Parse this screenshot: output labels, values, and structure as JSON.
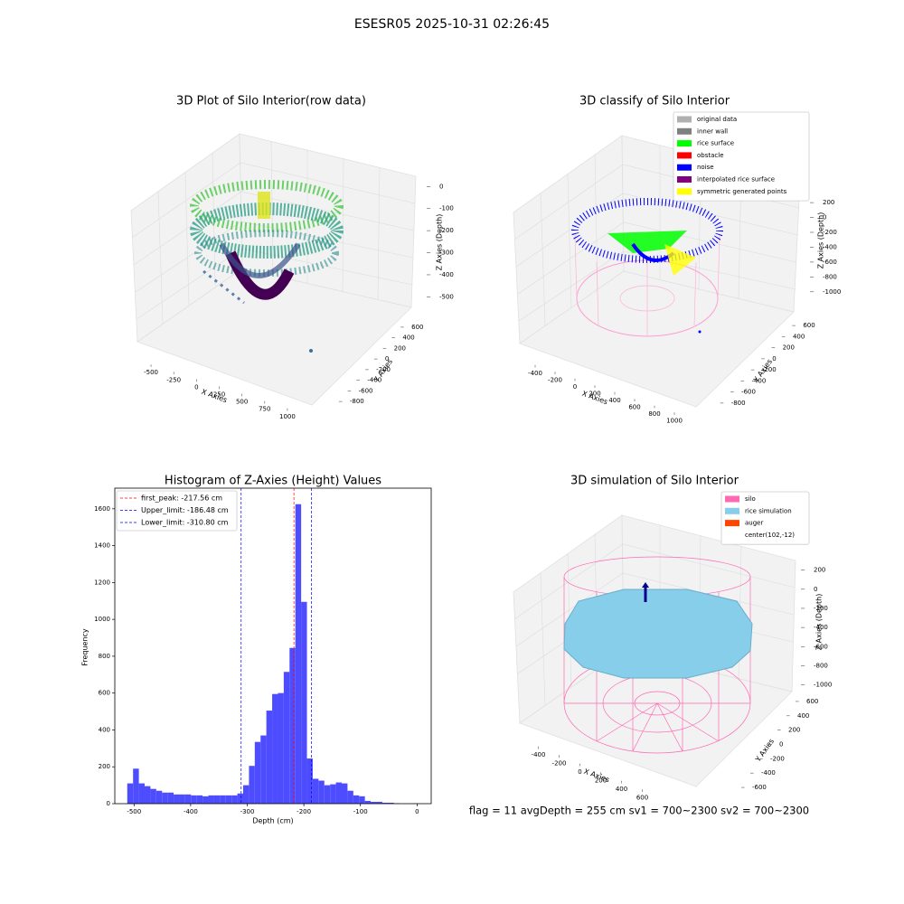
{
  "suptitle": "ESESR05 2025-10-31 02:26:45",
  "footer": "flag = 11  avgDepth = 255 cm  sv1 = 700~2300  sv2 = 700~2300",
  "chart_data": [
    {
      "type": "scatter3d",
      "title": "3D Plot of Silo Interior(row data)",
      "xlabel": "X Axies",
      "ylabel": "Y Axies",
      "zlabel": "Z Axies (Depth)",
      "xlim": [
        -600,
        1100
      ],
      "xticks": [
        -500,
        -250,
        0,
        250,
        500,
        750,
        1000
      ],
      "ylim": [
        -900,
        700
      ],
      "yticks": [
        600,
        400,
        200,
        0,
        -200,
        -400,
        -600,
        -800
      ],
      "zlim": [
        -560,
        30
      ],
      "zticks": [
        0,
        -100,
        -200,
        -300,
        -400,
        -500
      ]
    },
    {
      "type": "scatter3d",
      "title": "3D classify of Silo Interior",
      "xlabel": "X Axies",
      "ylabel": "Y Axies",
      "zlabel": "Z Axies (Depth)",
      "xlim": [
        -500,
        1100
      ],
      "xticks": [
        -400,
        -200,
        0,
        200,
        400,
        600,
        800,
        1000
      ],
      "ylim": [
        -900,
        700
      ],
      "yticks": [
        600,
        400,
        200,
        0,
        -200,
        -400,
        -600,
        -800
      ],
      "zlim": [
        -1100,
        250
      ],
      "zticks": [
        200,
        0,
        -200,
        -400,
        -600,
        -800,
        -1000
      ],
      "legend": [
        {
          "name": "original data",
          "color": "#b0b0b0"
        },
        {
          "name": "inner wall",
          "color": "#808080"
        },
        {
          "name": "rice surface",
          "color": "#00ff00"
        },
        {
          "name": "obstacle",
          "color": "#ff0000"
        },
        {
          "name": "noise",
          "color": "#0000ff"
        },
        {
          "name": "interpolated rice surface",
          "color": "#800080"
        },
        {
          "name": "symmetric generated points",
          "color": "#ffff00"
        }
      ]
    },
    {
      "type": "histogram",
      "title": "Histogram of Z-Axies (Height) Values",
      "xlabel": "Depth (cm)",
      "ylabel": "Frequency",
      "color": "#4d4dff",
      "bins": [
        -512,
        -501.76,
        -491.52,
        -481.28,
        -471.04,
        -460.8,
        -450.56,
        -440.32,
        -430.08,
        -419.84,
        -409.6,
        -399.36,
        -389.12,
        -378.88,
        -368.64,
        -358.4,
        -348.16,
        -337.92,
        -327.68,
        -317.44,
        -307.2,
        -296.96,
        -286.72,
        -276.48,
        -266.24,
        -256,
        -245.76,
        -235.52,
        -225.28,
        -215.04,
        -204.8,
        -194.56,
        -184.32,
        -174.08,
        -163.84,
        -153.6,
        -143.36,
        -133.12,
        -122.88,
        -112.64,
        -102.4,
        -92.16,
        -81.92,
        -71.68,
        -61.44,
        -51.2,
        -40.96,
        -30.72,
        -20.48,
        -10.24,
        0
      ],
      "values": [
        110,
        190,
        110,
        95,
        80,
        70,
        60,
        60,
        50,
        50,
        50,
        45,
        45,
        40,
        45,
        45,
        45,
        45,
        45,
        55,
        100,
        205,
        335,
        370,
        505,
        595,
        600,
        715,
        845,
        1625,
        1095,
        245,
        135,
        125,
        100,
        105,
        115,
        110,
        70,
        45,
        40,
        15,
        10,
        10,
        5,
        5,
        2,
        0,
        0,
        1
      ],
      "xlim": [
        -534,
        25
      ],
      "xticks": [
        -500,
        -400,
        -300,
        -200,
        -100,
        0
      ],
      "ylim": [
        0,
        1712
      ],
      "yticks": [
        0,
        200,
        400,
        600,
        800,
        1000,
        1200,
        1400,
        1600
      ],
      "lines": [
        {
          "name": "first_peak: -217.56 cm",
          "value": -217.56,
          "color": "#ff0000"
        },
        {
          "name": "Upper_limit: -186.48 cm",
          "value": -186.48,
          "color": "#0000ff"
        },
        {
          "name": "Lower_limit: -310.80 cm",
          "value": -310.8,
          "color": "#0000ff"
        }
      ]
    },
    {
      "type": "surface3d",
      "title": "3D simulation of Silo Interior",
      "xlabel": "X Axies",
      "ylabel": "Y Axies",
      "zlabel": "Z Axies (Depth)",
      "xlim": [
        -500,
        700
      ],
      "xticks": [
        -400,
        -200,
        0,
        200,
        400,
        600
      ],
      "ylim": [
        -700,
        700
      ],
      "yticks": [
        600,
        400,
        200,
        0,
        -200,
        -400,
        -600
      ],
      "zlim": [
        -1050,
        300
      ],
      "zticks": [
        200,
        0,
        -200,
        -400,
        -600,
        -800,
        -1000
      ],
      "legend": [
        {
          "name": "silo",
          "color": "#ff69b4"
        },
        {
          "name": "rice simulation",
          "color": "#87ceeb"
        },
        {
          "name": "auger",
          "color": "#ff4500"
        },
        {
          "name": "center(102,-12)",
          "color": "#ffffff"
        }
      ]
    }
  ]
}
